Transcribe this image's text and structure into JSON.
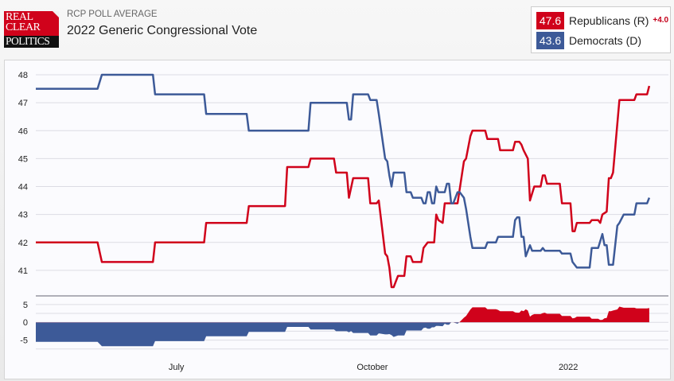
{
  "header": {
    "logo_text": [
      "REAL",
      "CLEAR",
      "POLITICS"
    ],
    "subtitle": "RCP POLL AVERAGE",
    "title": "2022 Generic Congressional Vote"
  },
  "legend": [
    {
      "value": "47.6",
      "name": "Republicans (R)",
      "lead": "+4.0",
      "color": "#d0021b"
    },
    {
      "value": "43.6",
      "name": "Democrats (D)",
      "color": "#3d5a98"
    }
  ],
  "chart_data": [
    {
      "type": "line",
      "xlim": [
        "2021-04-26",
        "2022-02-17"
      ],
      "ylim": [
        40.2,
        48.4
      ],
      "yticks": [
        41,
        42,
        43,
        44,
        45,
        46,
        47,
        48
      ],
      "grid": true,
      "series": [
        {
          "name": "Republicans (R)",
          "color": "#d0021b",
          "points": [
            [
              "2021-04-26",
              42.0
            ],
            [
              "2021-05-25",
              42.0
            ],
            [
              "2021-05-27",
              41.3
            ],
            [
              "2021-06-20",
              41.3
            ],
            [
              "2021-06-21",
              42.0
            ],
            [
              "2021-07-14",
              42.0
            ],
            [
              "2021-07-15",
              42.7
            ],
            [
              "2021-08-03",
              42.7
            ],
            [
              "2021-08-04",
              43.3
            ],
            [
              "2021-08-21",
              43.3
            ],
            [
              "2021-08-22",
              44.7
            ],
            [
              "2021-09-01",
              44.7
            ],
            [
              "2021-09-02",
              45.0
            ],
            [
              "2021-09-13",
              45.0
            ],
            [
              "2021-09-14",
              44.5
            ],
            [
              "2021-09-19",
              44.5
            ],
            [
              "2021-09-20",
              43.6
            ],
            [
              "2021-09-22",
              44.3
            ],
            [
              "2021-09-29",
              44.3
            ],
            [
              "2021-09-30",
              43.4
            ],
            [
              "2021-10-03",
              43.4
            ],
            [
              "2021-10-04",
              43.5
            ],
            [
              "2021-10-07",
              41.6
            ],
            [
              "2021-10-08",
              41.5
            ],
            [
              "2021-10-09",
              41.1
            ],
            [
              "2021-10-10",
              40.4
            ],
            [
              "2021-10-11",
              40.4
            ],
            [
              "2021-10-13",
              40.8
            ],
            [
              "2021-10-16",
              40.8
            ],
            [
              "2021-10-17",
              41.5
            ],
            [
              "2021-10-19",
              41.5
            ],
            [
              "2021-10-20",
              41.3
            ],
            [
              "2021-10-24",
              41.3
            ],
            [
              "2021-10-25",
              41.8
            ],
            [
              "2021-10-27",
              42.0
            ],
            [
              "2021-10-30",
              42.0
            ],
            [
              "2021-10-31",
              43.0
            ],
            [
              "2021-11-01",
              42.8
            ],
            [
              "2021-11-03",
              42.7
            ],
            [
              "2021-11-04",
              43.4
            ],
            [
              "2021-11-10",
              43.4
            ],
            [
              "2021-11-13",
              44.9
            ],
            [
              "2021-11-14",
              45.0
            ],
            [
              "2021-11-16",
              45.8
            ],
            [
              "2021-11-17",
              46.0
            ],
            [
              "2021-11-23",
              46.0
            ],
            [
              "2021-11-24",
              45.7
            ],
            [
              "2021-11-29",
              45.7
            ],
            [
              "2021-11-30",
              45.3
            ],
            [
              "2021-12-06",
              45.3
            ],
            [
              "2021-12-07",
              45.6
            ],
            [
              "2021-12-09",
              45.6
            ],
            [
              "2021-12-10",
              45.5
            ],
            [
              "2021-12-11",
              45.3
            ],
            [
              "2021-12-13",
              45.0
            ],
            [
              "2021-12-14",
              43.5
            ],
            [
              "2021-12-16",
              44.0
            ],
            [
              "2021-12-19",
              44.0
            ],
            [
              "2021-12-20",
              44.4
            ],
            [
              "2021-12-21",
              44.4
            ],
            [
              "2021-12-22",
              44.1
            ],
            [
              "2021-12-28",
              44.1
            ],
            [
              "2021-12-29",
              43.4
            ],
            [
              "2022-01-02",
              43.4
            ],
            [
              "2022-01-03",
              42.4
            ],
            [
              "2022-01-04",
              42.4
            ],
            [
              "2022-01-05",
              42.7
            ],
            [
              "2022-01-11",
              42.7
            ],
            [
              "2022-01-12",
              42.8
            ],
            [
              "2022-01-15",
              42.8
            ],
            [
              "2022-01-16",
              42.7
            ],
            [
              "2022-01-17",
              43.0
            ],
            [
              "2022-01-19",
              43.1
            ],
            [
              "2022-01-20",
              44.3
            ],
            [
              "2022-01-21",
              44.3
            ],
            [
              "2022-01-22",
              44.5
            ],
            [
              "2022-01-25",
              47.1
            ],
            [
              "2022-02-01",
              47.1
            ],
            [
              "2022-02-02",
              47.3
            ],
            [
              "2022-02-07",
              47.3
            ],
            [
              "2022-02-08",
              47.6
            ]
          ]
        },
        {
          "name": "Democrats (D)",
          "color": "#3d5a98",
          "points": [
            [
              "2021-04-26",
              47.5
            ],
            [
              "2021-05-25",
              47.5
            ],
            [
              "2021-05-27",
              48.0
            ],
            [
              "2021-06-20",
              48.0
            ],
            [
              "2021-06-21",
              47.3
            ],
            [
              "2021-07-14",
              47.3
            ],
            [
              "2021-07-15",
              46.6
            ],
            [
              "2021-08-03",
              46.6
            ],
            [
              "2021-08-04",
              46.0
            ],
            [
              "2021-09-01",
              46.0
            ],
            [
              "2021-09-02",
              47.0
            ],
            [
              "2021-09-19",
              47.0
            ],
            [
              "2021-09-20",
              46.4
            ],
            [
              "2021-09-21",
              46.4
            ],
            [
              "2021-09-22",
              47.3
            ],
            [
              "2021-09-29",
              47.3
            ],
            [
              "2021-09-30",
              47.1
            ],
            [
              "2021-10-03",
              47.1
            ],
            [
              "2021-10-04",
              46.6
            ],
            [
              "2021-10-07",
              45.0
            ],
            [
              "2021-10-08",
              44.9
            ],
            [
              "2021-10-09",
              44.4
            ],
            [
              "2021-10-10",
              44.0
            ],
            [
              "2021-10-11",
              44.5
            ],
            [
              "2021-10-16",
              44.5
            ],
            [
              "2021-10-17",
              43.8
            ],
            [
              "2021-10-19",
              43.8
            ],
            [
              "2021-10-20",
              43.6
            ],
            [
              "2021-10-24",
              43.6
            ],
            [
              "2021-10-25",
              43.4
            ],
            [
              "2021-10-26",
              43.4
            ],
            [
              "2021-10-27",
              43.8
            ],
            [
              "2021-10-28",
              43.8
            ],
            [
              "2021-10-29",
              43.4
            ],
            [
              "2021-10-30",
              43.4
            ],
            [
              "2021-10-31",
              44.0
            ],
            [
              "2021-11-01",
              43.8
            ],
            [
              "2021-11-04",
              43.8
            ],
            [
              "2021-11-05",
              44.1
            ],
            [
              "2021-11-06",
              44.1
            ],
            [
              "2021-11-07",
              43.4
            ],
            [
              "2021-11-08",
              43.4
            ],
            [
              "2021-11-10",
              43.8
            ],
            [
              "2021-11-11",
              43.8
            ],
            [
              "2021-11-13",
              43.6
            ],
            [
              "2021-11-14",
              43.2
            ],
            [
              "2021-11-16",
              42.2
            ],
            [
              "2021-11-17",
              41.8
            ],
            [
              "2021-11-23",
              41.8
            ],
            [
              "2021-11-24",
              42.0
            ],
            [
              "2021-11-28",
              42.0
            ],
            [
              "2021-11-29",
              42.2
            ],
            [
              "2021-12-06",
              42.2
            ],
            [
              "2021-12-07",
              42.8
            ],
            [
              "2021-12-08",
              42.9
            ],
            [
              "2021-12-09",
              42.9
            ],
            [
              "2021-12-10",
              42.2
            ],
            [
              "2021-12-11",
              42.2
            ],
            [
              "2021-12-12",
              41.5
            ],
            [
              "2021-12-14",
              41.9
            ],
            [
              "2021-12-15",
              41.7
            ],
            [
              "2021-12-19",
              41.7
            ],
            [
              "2021-12-20",
              41.8
            ],
            [
              "2021-12-21",
              41.7
            ],
            [
              "2021-12-28",
              41.7
            ],
            [
              "2021-12-29",
              41.6
            ],
            [
              "2022-01-02",
              41.6
            ],
            [
              "2022-01-03",
              41.3
            ],
            [
              "2022-01-05",
              41.1
            ],
            [
              "2022-01-11",
              41.1
            ],
            [
              "2022-01-12",
              41.8
            ],
            [
              "2022-01-15",
              41.8
            ],
            [
              "2022-01-17",
              42.3
            ],
            [
              "2022-01-18",
              41.9
            ],
            [
              "2022-01-19",
              41.9
            ],
            [
              "2022-01-20",
              41.2
            ],
            [
              "2022-01-22",
              41.2
            ],
            [
              "2022-01-24",
              42.6
            ],
            [
              "2022-01-25",
              42.7
            ],
            [
              "2022-01-27",
              43.0
            ],
            [
              "2022-02-01",
              43.0
            ],
            [
              "2022-02-02",
              43.4
            ],
            [
              "2022-02-07",
              43.4
            ],
            [
              "2022-02-08",
              43.6
            ]
          ]
        }
      ]
    },
    {
      "type": "area",
      "series_label": "spread",
      "ylim": [
        -8,
        7.2
      ],
      "yticks": [
        5,
        0,
        -5
      ],
      "xticks": [
        {
          "date": "2021-07-01",
          "label": "July"
        },
        {
          "date": "2021-10-01",
          "label": "October"
        },
        {
          "date": "2022-01-01",
          "label": "2022"
        }
      ],
      "positive_color": "#d0021b",
      "negative_color": "#3d5a98"
    }
  ]
}
